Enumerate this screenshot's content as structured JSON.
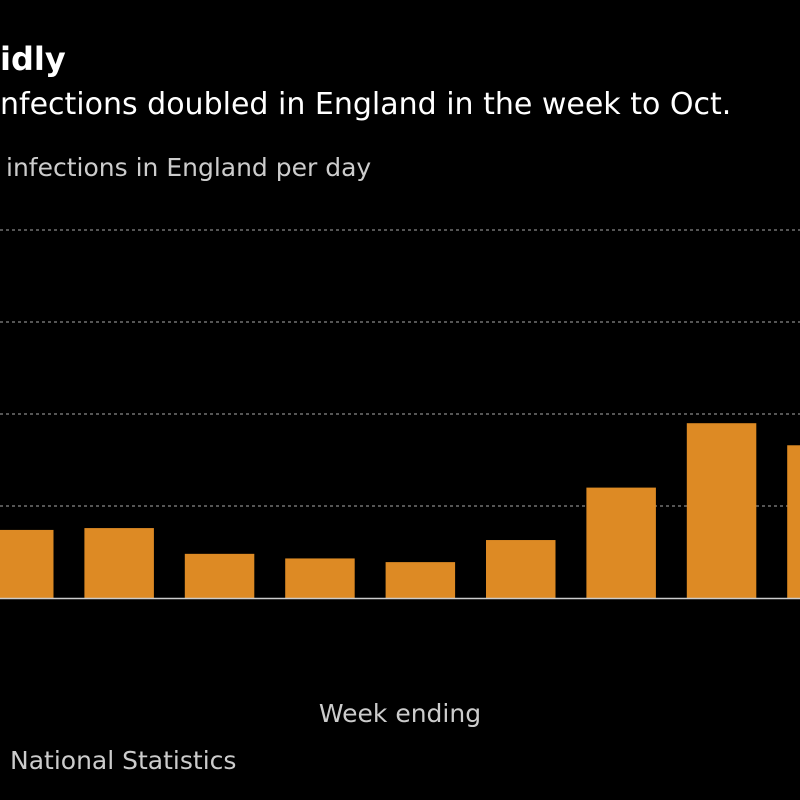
{
  "chart_data": {
    "type": "bar",
    "title": "idly",
    "subtitle": "nfections doubled in England in the week to Oct.",
    "ylabel": "infections in England per day",
    "xlabel": "Week ending",
    "source": "National Statistics",
    "values": [
      0.74,
      0.76,
      0.48,
      0.43,
      0.39,
      0.63,
      1.2,
      1.9,
      1.66
    ],
    "ylim": [
      0,
      4
    ],
    "grid": true,
    "bar_color": "#DD8A24",
    "background": "#000000"
  }
}
